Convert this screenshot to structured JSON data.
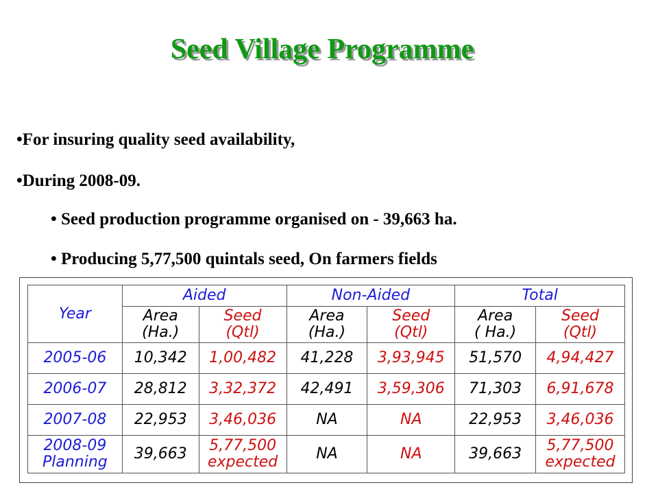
{
  "title": "Seed Village Programme",
  "bullets": [
    "•For insuring quality seed availability,",
    "•During 2008-09."
  ],
  "sub_bullets": [
    "• Seed production programme organised on  - 39,663 ha.",
    "• Producing  5,77,500 quintals seed, On farmers fields"
  ],
  "table": {
    "year_header": "Year",
    "groups": [
      "Aided",
      "Non-Aided",
      "Total"
    ],
    "sub_headers": [
      {
        "line1": "Area",
        "line2": "(Ha.)"
      },
      {
        "line1": "Seed",
        "line2": "(Qtl)"
      },
      {
        "line1": "Area",
        "line2": "(Ha.)"
      },
      {
        "line1": "Seed",
        "line2": "(Qtl)"
      },
      {
        "line1": "Area",
        "line2": "( Ha.)"
      },
      {
        "line1": "Seed",
        "line2": "(Qtl)"
      }
    ],
    "rows": [
      {
        "year": "2005-06",
        "year2": "",
        "cells": [
          "10,342",
          "1,00,482",
          "41,228",
          "3,93,945",
          "51,570",
          "4,94,427"
        ],
        "notes": [
          "",
          "",
          "",
          "",
          "",
          ""
        ]
      },
      {
        "year": "2006-07",
        "year2": "",
        "cells": [
          "28,812",
          "3,32,372",
          "42,491",
          "3,59,306",
          "71,303",
          "6,91,678"
        ],
        "notes": [
          "",
          "",
          "",
          "",
          "",
          ""
        ]
      },
      {
        "year": "2007-08",
        "year2": "",
        "cells": [
          "22,953",
          "3,46,036",
          "NA",
          "NA",
          "22,953",
          "3,46,036"
        ],
        "notes": [
          "",
          "",
          "",
          "",
          "",
          ""
        ]
      },
      {
        "year": "2008-09",
        "year2": "Planning",
        "cells": [
          "39,663",
          "5,77,500",
          "NA",
          "NA",
          "39,663",
          "5,77,500"
        ],
        "notes": [
          "",
          "expected",
          "",
          "",
          "",
          "expected"
        ]
      }
    ]
  },
  "colors": {
    "title": "#0f9a14",
    "header_blue": "#1b1bd6",
    "seed_red": "#cc1010",
    "area_black": "#000000"
  }
}
